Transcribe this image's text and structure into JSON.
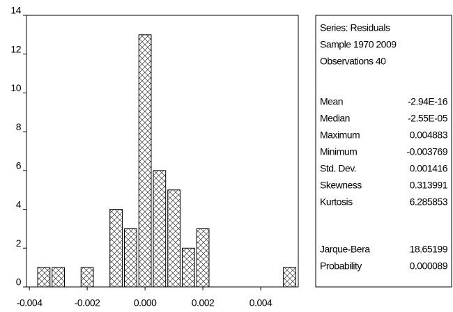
{
  "chart_data": {
    "type": "histogram",
    "bins": [
      -0.00375,
      -0.00325,
      -0.00275,
      -0.00225,
      -0.00175,
      -0.00125,
      -0.00075,
      -0.00025,
      0.00025,
      0.00075,
      0.00125,
      0.00175,
      0.00225,
      0.00275,
      0.00325,
      0.00375,
      0.00425,
      0.00475,
      0.00525
    ],
    "values": [
      1,
      1,
      0,
      1,
      0,
      4,
      3,
      13,
      6,
      5,
      2,
      3,
      0,
      0,
      0,
      0,
      0,
      1
    ],
    "color": "#000000",
    "xlim": [
      -0.0041,
      0.0053
    ],
    "xticks": [
      {
        "value": -0.004,
        "label": "-0.004"
      },
      {
        "value": -0.002,
        "label": "-0.002"
      },
      {
        "value": 0,
        "label": "0.000"
      },
      {
        "value": 0.002,
        "label": "0.002"
      },
      {
        "value": 0.004,
        "label": "0.004"
      }
    ],
    "ylim": [
      0,
      14
    ],
    "yticks": [
      0,
      2,
      4,
      6,
      8,
      10,
      12,
      14
    ]
  },
  "stats_panel": {
    "header": [
      "Series: Residuals",
      "Sample 1970 2009",
      "Observations 40"
    ],
    "rows": [
      [
        "Mean",
        "-2.94E-16"
      ],
      [
        "Median",
        "-2.55E-05"
      ],
      [
        "Maximum",
        "0.004883"
      ],
      [
        "Minimum",
        "-0.003769"
      ],
      [
        "Std. Dev.",
        "0.001416"
      ],
      [
        "Skewness",
        "0.313991"
      ],
      [
        "Kurtosis",
        "6.285853"
      ]
    ],
    "test_rows": [
      [
        "Jarque-Bera",
        "18.65199"
      ],
      [
        "Probability",
        "0.000089"
      ]
    ]
  }
}
